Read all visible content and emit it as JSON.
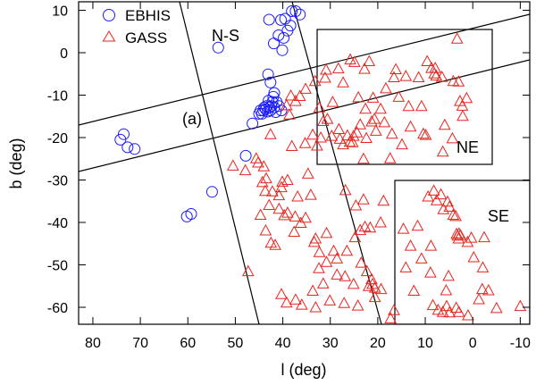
{
  "chart_data": {
    "type": "scatter",
    "title": "",
    "xlabel": "l (deg)",
    "ylabel": "b (deg)",
    "xlim": [
      83,
      -12
    ],
    "ylim": [
      -64,
      12
    ],
    "xticks": [
      80,
      70,
      60,
      50,
      40,
      30,
      20,
      10,
      0,
      -10
    ],
    "yticks": [
      10,
      0,
      -10,
      -20,
      -30,
      -40,
      -50,
      -60
    ],
    "grid": false,
    "legend_position": "top-left",
    "colors": {
      "EBHIS": "#1a1aff",
      "GASS": "#e8251f"
    },
    "series": [
      {
        "name": "EBHIS",
        "marker": "circle",
        "points": [
          [
            73.5,
            -19.2
          ],
          [
            74.2,
            -20.5
          ],
          [
            72.7,
            -22.3
          ],
          [
            71.2,
            -22.7
          ],
          [
            60.2,
            -38.6
          ],
          [
            59.3,
            -38.0
          ],
          [
            54.9,
            -32.8
          ],
          [
            53.6,
            1.2
          ],
          [
            47.8,
            -24.3
          ],
          [
            46.4,
            -16.7
          ],
          [
            45.0,
            -14.4
          ],
          [
            44.7,
            -13.6
          ],
          [
            44.4,
            -14.4
          ],
          [
            44.1,
            -13.6
          ],
          [
            43.9,
            -12.9
          ],
          [
            43.6,
            -13.3
          ],
          [
            43.4,
            -12.6
          ],
          [
            43.2,
            -13.9
          ],
          [
            43.0,
            -11.3
          ],
          [
            42.8,
            -12.9
          ],
          [
            42.6,
            -13.6
          ],
          [
            42.4,
            -12.6
          ],
          [
            42.2,
            -11.6
          ],
          [
            42.0,
            -10.4
          ],
          [
            41.8,
            -12.9
          ],
          [
            41.5,
            -14.0
          ],
          [
            41.3,
            -11.6
          ],
          [
            40.8,
            -12.6
          ],
          [
            40.3,
            -13.6
          ],
          [
            43.1,
            -5.1
          ],
          [
            42.6,
            -7.0
          ],
          [
            41.8,
            -9.5
          ],
          [
            42.9,
            7.8
          ],
          [
            41.9,
            2.2
          ],
          [
            40.9,
            4.1
          ],
          [
            40.4,
            7.7
          ],
          [
            39.8,
            3.5
          ],
          [
            39.0,
            5.2
          ],
          [
            38.4,
            6.4
          ],
          [
            39.5,
            8.0
          ],
          [
            38.1,
            9.8
          ],
          [
            37.3,
            9.8
          ],
          [
            36.4,
            9.0
          ],
          [
            40.1,
            0.6
          ]
        ]
      },
      {
        "name": "GASS",
        "marker": "triangle",
        "points": [
          [
            38.6,
            -14.6
          ],
          [
            39.2,
            -12.4
          ],
          [
            37.3,
            -11.4
          ],
          [
            36.4,
            -10.2
          ],
          [
            38.3,
            -10.1
          ],
          [
            35.2,
            -8.5
          ],
          [
            33.2,
            -6.7
          ],
          [
            32.3,
            -12.9
          ],
          [
            30.6,
            -15.6
          ],
          [
            32.0,
            -20.0
          ],
          [
            31.1,
            -5.9
          ],
          [
            28.3,
            -3.7
          ],
          [
            29.5,
            -11.6
          ],
          [
            30.9,
            -4.0
          ],
          [
            25.8,
            -1.6
          ],
          [
            24.9,
            -2.2
          ],
          [
            22.8,
            -3.8
          ],
          [
            21.8,
            -2.0
          ],
          [
            27.3,
            -7.0
          ],
          [
            24.1,
            -10.5
          ],
          [
            21.0,
            -10.6
          ],
          [
            22.6,
            -13.2
          ],
          [
            20.7,
            -15.6
          ],
          [
            19.4,
            -13.2
          ],
          [
            20.4,
            -18.4
          ],
          [
            18.6,
            -16.4
          ],
          [
            18.3,
            -8.4
          ],
          [
            16.6,
            -5.8
          ],
          [
            16.2,
            -3.9
          ],
          [
            15.6,
            -10.4
          ],
          [
            13.5,
            -12.6
          ],
          [
            14.1,
            -5.5
          ],
          [
            11.4,
            -5.8
          ],
          [
            10.8,
            -12.6
          ],
          [
            9.6,
            -2.0
          ],
          [
            7.7,
            -5.4
          ],
          [
            6.5,
            -5.7
          ],
          [
            7.9,
            -3.6
          ],
          [
            8.1,
            -4.9
          ],
          [
            8.7,
            -3.6
          ],
          [
            3.3,
            3.3
          ],
          [
            2.7,
            -11.4
          ],
          [
            2.2,
            -12.5
          ],
          [
            2.1,
            -14.9
          ],
          [
            1.3,
            -10.7
          ],
          [
            3.0,
            -6.8
          ],
          [
            4.1,
            -6.7
          ],
          [
            5.9,
            -17.0
          ],
          [
            4.3,
            -20.2
          ],
          [
            6.3,
            -23.3
          ],
          [
            9.9,
            -19.4
          ],
          [
            10.4,
            -19.1
          ],
          [
            13.1,
            -17.4
          ],
          [
            14.9,
            -21.6
          ],
          [
            17.0,
            -19.1
          ],
          [
            17.4,
            -24.9
          ],
          [
            23.0,
            -25.0
          ],
          [
            22.4,
            -20.1
          ],
          [
            21.3,
            -16.2
          ],
          [
            23.7,
            -16.9
          ],
          [
            24.4,
            -18.8
          ],
          [
            25.1,
            -19.6
          ],
          [
            25.3,
            -21.1
          ],
          [
            26.4,
            -19.5
          ],
          [
            25.9,
            -21.0
          ],
          [
            27.3,
            -21.6
          ],
          [
            28.0,
            -20.3
          ],
          [
            29.7,
            -19.6
          ],
          [
            28.2,
            -18.0
          ],
          [
            31.5,
            -16.1
          ],
          [
            35.3,
            -21.3
          ],
          [
            34.7,
            -28.5
          ],
          [
            34.1,
            -33.5
          ],
          [
            36.9,
            -33.9
          ],
          [
            39.0,
            -30.0
          ],
          [
            40.1,
            -30.4
          ],
          [
            40.3,
            -31.7
          ],
          [
            40.8,
            -36.8
          ],
          [
            39.7,
            -38.3
          ],
          [
            39.0,
            -37.7
          ],
          [
            37.4,
            -38.6
          ],
          [
            36.2,
            -40.1
          ],
          [
            37.6,
            -42.2
          ],
          [
            35.2,
            -38.9
          ],
          [
            33.1,
            -43.8
          ],
          [
            32.3,
            -47.0
          ],
          [
            32.4,
            -50.8
          ],
          [
            30.8,
            -42.5
          ],
          [
            29.3,
            -46.7
          ],
          [
            30.8,
            -49.3
          ],
          [
            28.6,
            -48.5
          ],
          [
            26.5,
            -46.7
          ],
          [
            24.8,
            -43.5
          ],
          [
            23.7,
            -41.8
          ],
          [
            22.7,
            -41.0
          ],
          [
            23.5,
            -49.5
          ],
          [
            21.3,
            -53.4
          ],
          [
            21.9,
            -55.0
          ],
          [
            19.3,
            -55.7
          ],
          [
            16.6,
            -60.7
          ],
          [
            17.3,
            -62.6
          ],
          [
            20.6,
            -57.6
          ],
          [
            24.2,
            -59.6
          ],
          [
            27.1,
            -59.0
          ],
          [
            30.1,
            -58.4
          ],
          [
            33.1,
            -60.0
          ],
          [
            36.0,
            -59.4
          ],
          [
            37.3,
            -58.2
          ],
          [
            39.2,
            -58.9
          ],
          [
            33.7,
            -56.1
          ],
          [
            31.5,
            -54.4
          ],
          [
            26.9,
            -52.7
          ],
          [
            25.1,
            -54.5
          ],
          [
            22.3,
            -51.5
          ],
          [
            21.1,
            -54.5
          ],
          [
            20.6,
            -55.4
          ],
          [
            28.6,
            -52.3
          ],
          [
            45.6,
            -24.9
          ],
          [
            45.2,
            -25.9
          ],
          [
            44.0,
            -26.8
          ],
          [
            43.5,
            -29.6
          ],
          [
            44.3,
            -30.5
          ],
          [
            43.7,
            -32.6
          ],
          [
            42.2,
            -32.7
          ],
          [
            40.8,
            -33.6
          ],
          [
            42.9,
            -35.9
          ],
          [
            44.7,
            -38.2
          ],
          [
            43.6,
            -41.9
          ],
          [
            47.3,
            -51.5
          ],
          [
            41.6,
            -45.3
          ],
          [
            42.5,
            -44.8
          ],
          [
            47.9,
            -27.7
          ],
          [
            50.5,
            -26.6
          ],
          [
            42.6,
            -19.2
          ],
          [
            38.1,
            -22.0
          ],
          [
            33.7,
            -19.3
          ],
          [
            32.8,
            -21.9
          ],
          [
            24.6,
            -36.0
          ],
          [
            26.8,
            -32.4
          ],
          [
            23.0,
            -34.6
          ],
          [
            18.8,
            -34.9
          ],
          [
            21.6,
            -41.2
          ],
          [
            19.4,
            -40.0
          ],
          [
            33.4,
            -44.6
          ],
          [
            40.3,
            -56.9
          ],
          [
            14.6,
            -41.5
          ],
          [
            13.1,
            -45.5
          ],
          [
            9.4,
            -33.9
          ],
          [
            8.2,
            -32.5
          ],
          [
            7.6,
            -34.8
          ],
          [
            6.7,
            -33.4
          ],
          [
            6.2,
            -36.9
          ],
          [
            5.3,
            -35.1
          ],
          [
            4.9,
            -36.3
          ],
          [
            4.1,
            -38.2
          ],
          [
            3.6,
            -38.5
          ],
          [
            2.9,
            -42.6
          ],
          [
            3.2,
            -43.1
          ],
          [
            2.6,
            -43.0
          ],
          [
            3.4,
            -42.7
          ],
          [
            3.0,
            -43.8
          ],
          [
            1.1,
            -44.6
          ],
          [
            0.3,
            -43.6
          ],
          [
            -0.2,
            -48.2
          ],
          [
            -2.1,
            -50.6
          ],
          [
            -2.0,
            -55.7
          ],
          [
            -2.4,
            -43.5
          ],
          [
            5.1,
            -52.6
          ],
          [
            5.6,
            -56.0
          ],
          [
            8.8,
            -45.5
          ],
          [
            11.6,
            -40.8
          ],
          [
            10.8,
            -48.5
          ],
          [
            8.9,
            -51.8
          ],
          [
            14.1,
            -50.6
          ],
          [
            12.4,
            -56.1
          ],
          [
            8.4,
            -59.5
          ],
          [
            7.3,
            -60.6
          ],
          [
            6.3,
            -61.1
          ],
          [
            5.5,
            -59.7
          ],
          [
            4.9,
            -61.2
          ],
          [
            3.5,
            -60.1
          ],
          [
            2.9,
            -61.1
          ],
          [
            1.0,
            -61.9
          ],
          [
            -1.3,
            -58.1
          ],
          [
            -3.3,
            -56.0
          ],
          [
            -10.0,
            -59.7
          ],
          [
            -5.0,
            -60.2
          ]
        ]
      }
    ],
    "annotations": [
      "N-S",
      "(a)",
      "NE",
      "SE"
    ]
  }
}
